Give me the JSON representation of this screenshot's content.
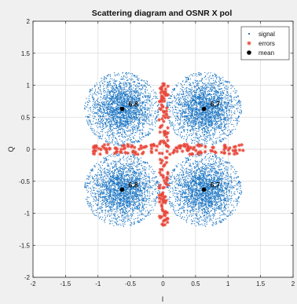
{
  "chart_data": {
    "type": "scatter",
    "title": "Scattering diagram and OSNR X pol",
    "xlabel": "I",
    "ylabel": "Q",
    "xlim": [
      -2,
      2
    ],
    "ylim": [
      -2,
      2
    ],
    "xticks": [
      -2,
      -1.5,
      -1,
      -0.5,
      0,
      0.5,
      1,
      1.5,
      2
    ],
    "yticks": [
      -2,
      -1.5,
      -1,
      -0.5,
      0,
      0.5,
      1,
      1.5,
      2
    ],
    "xtick_labels": [
      "-2",
      "-1.5",
      "-1",
      "-0.5",
      "0",
      "0.5",
      "1",
      "1.5",
      "2"
    ],
    "ytick_labels": [
      "-2",
      "-1.5",
      "-1",
      "-0.5",
      "0",
      "0.5",
      "1",
      "1.5",
      "2"
    ],
    "grid": true,
    "legend_position": "top-right",
    "legend": [
      {
        "label": "signal",
        "marker": "point",
        "color": "#1f77c4"
      },
      {
        "label": "errors",
        "marker": "asterisk",
        "color": "#e8483b"
      },
      {
        "label": "mean",
        "marker": "dot",
        "color": "#000000"
      }
    ],
    "colors": {
      "signal": "#1f77c4",
      "errors": "#e8483b",
      "mean": "#000000",
      "grid": "#d9d9d9",
      "axes_bg": "#ffffff",
      "figure_bg": "#f0f0f0"
    },
    "clusters": [
      {
        "mean": [
          -0.63,
          0.63
        ],
        "osnr_label": "6.8"
      },
      {
        "mean": [
          0.63,
          0.63
        ],
        "osnr_label": "6.7"
      },
      {
        "mean": [
          -0.63,
          -0.63
        ],
        "osnr_label": "6.8"
      },
      {
        "mean": [
          0.63,
          -0.63
        ],
        "osnr_label": "6.7"
      }
    ],
    "signal_spread_radius": 0.58,
    "error_regions": [
      {
        "x": [
          -0.06,
          0.08
        ],
        "y": [
          0.05,
          1.05
        ]
      },
      {
        "x": [
          -0.06,
          0.08
        ],
        "y": [
          -1.25,
          -0.05
        ]
      },
      {
        "x": [
          -1.08,
          -0.05
        ],
        "y": [
          -0.08,
          0.08
        ]
      },
      {
        "x": [
          0.05,
          1.3
        ],
        "y": [
          -0.08,
          0.08
        ]
      }
    ]
  }
}
